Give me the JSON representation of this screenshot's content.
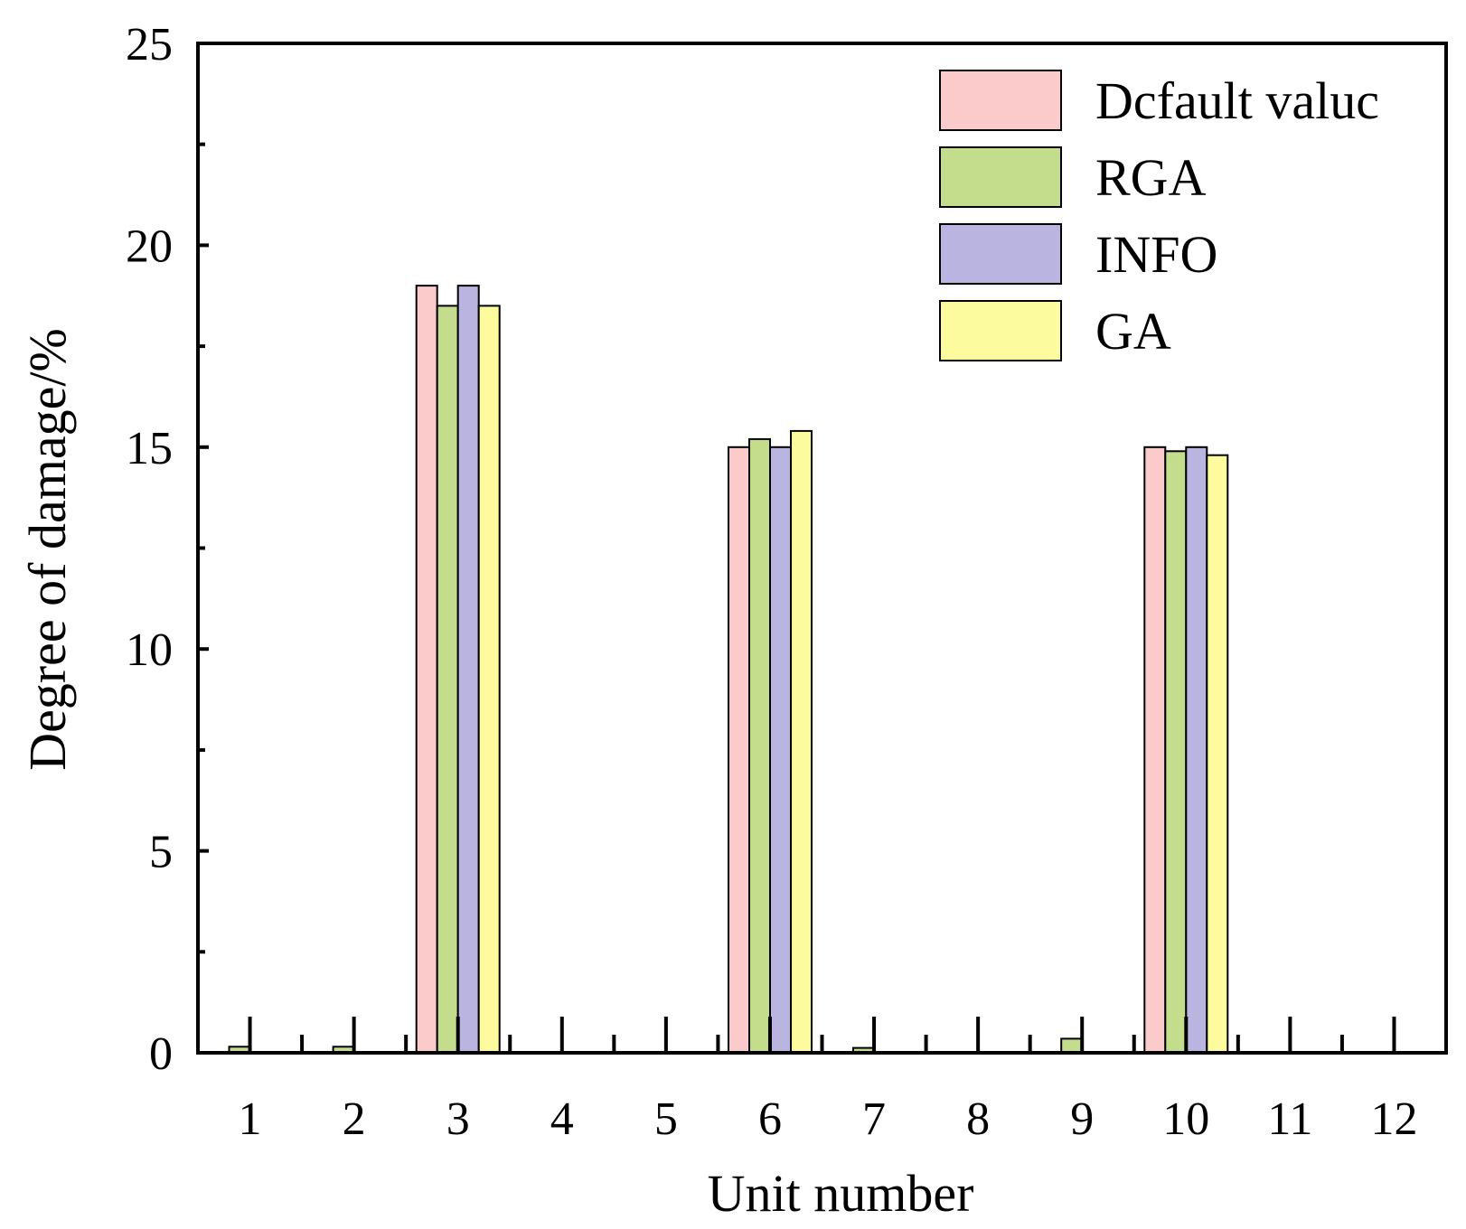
{
  "chart_data": {
    "type": "bar",
    "title": "",
    "xlabel": "Unit number",
    "ylabel": "Degree of damage/%",
    "categories": [
      "1",
      "2",
      "3",
      "4",
      "5",
      "6",
      "7",
      "8",
      "9",
      "10",
      "11",
      "12"
    ],
    "ylim": [
      0,
      25
    ],
    "yticks": [
      "0",
      "5",
      "10",
      "15",
      "20",
      "25"
    ],
    "grid": false,
    "legend_position": "top-right",
    "series": [
      {
        "name": "Dcfault valuc",
        "color": "#fbcaca",
        "values": [
          0,
          0,
          19,
          0,
          0,
          15,
          0,
          0,
          0,
          15,
          0,
          0
        ]
      },
      {
        "name": "RGA",
        "color": "#c4dd8c",
        "values": [
          0.15,
          0.15,
          18.5,
          0,
          0,
          15.2,
          0.12,
          0,
          0.35,
          14.9,
          0,
          0
        ]
      },
      {
        "name": "INFO",
        "color": "#bab4e0",
        "values": [
          0,
          0,
          19,
          0,
          0,
          15,
          0,
          0,
          0,
          15,
          0,
          0
        ]
      },
      {
        "name": "GA",
        "color": "#fcfc9e",
        "values": [
          0,
          0,
          18.5,
          0,
          0,
          15.4,
          0,
          0,
          0,
          14.8,
          0,
          0
        ]
      }
    ]
  }
}
